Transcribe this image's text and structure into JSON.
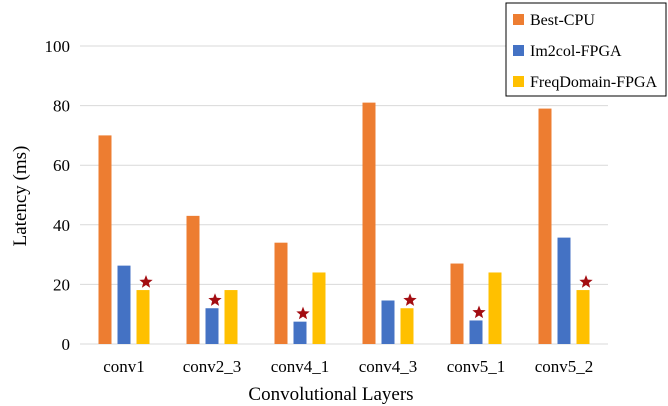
{
  "chart_data": {
    "type": "bar",
    "categories": [
      "conv1",
      "conv2_3",
      "conv4_1",
      "conv4_3",
      "conv5_1",
      "conv5_2"
    ],
    "series": [
      {
        "name": "Best-CPU",
        "color": "#ed7d31",
        "values": [
          70,
          43,
          34,
          81,
          27,
          79
        ]
      },
      {
        "name": "Im2col-FPGA",
        "color": "#4472c4",
        "values": [
          26.3,
          12,
          7.5,
          14.6,
          7.9,
          35.7
        ]
      },
      {
        "name": "FreqDomain-FPGA",
        "color": "#ffc000",
        "values": [
          18.1,
          18.1,
          24,
          12,
          24,
          18.1
        ]
      }
    ],
    "best_markers": [
      {
        "category": "conv1",
        "series": "FreqDomain-FPGA"
      },
      {
        "category": "conv2_3",
        "series": "Im2col-FPGA"
      },
      {
        "category": "conv4_1",
        "series": "Im2col-FPGA"
      },
      {
        "category": "conv4_3",
        "series": "FreqDomain-FPGA"
      },
      {
        "category": "conv5_1",
        "series": "Im2col-FPGA"
      },
      {
        "category": "conv5_2",
        "series": "FreqDomain-FPGA"
      }
    ],
    "marker_symbol": "star",
    "xlabel": "Convolutional Layers",
    "ylabel": "Latency (ms)",
    "ylim": [
      0,
      100
    ],
    "yticks": [
      0,
      20,
      40,
      60,
      80,
      100
    ],
    "grid": true,
    "legend_position": "top-right"
  }
}
